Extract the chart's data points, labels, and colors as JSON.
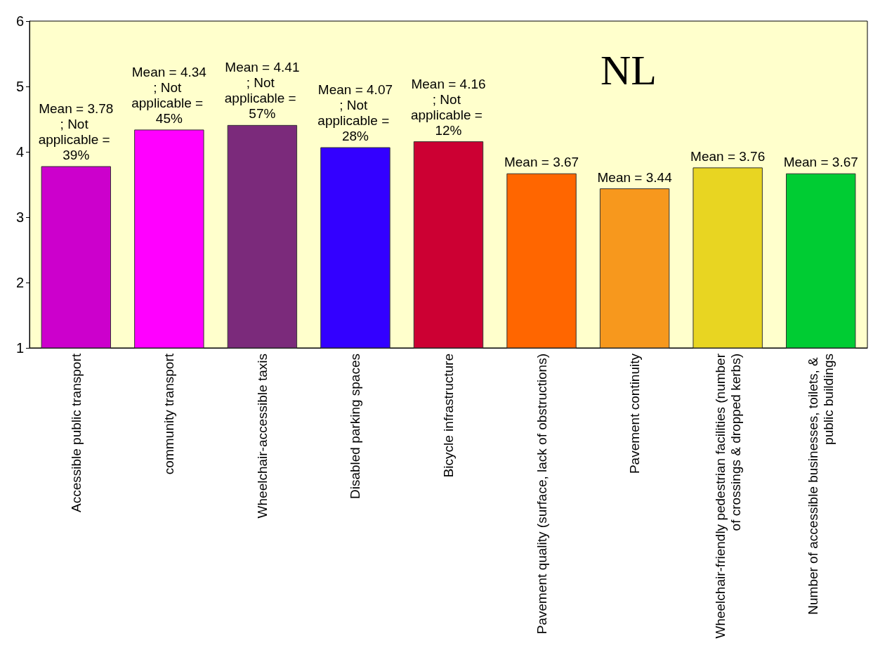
{
  "chart_data": {
    "type": "bar",
    "title": "NL",
    "categories": [
      "Accessible public transport",
      "community transport",
      "Wheelchair-accessible taxis",
      "Disabled parking spaces",
      "Bicycle infrastructure",
      "Pavement quality (surface, lack of obstructions)",
      "Pavement continuity",
      "Wheelchair-friendly pedestrian facilities (number of crossings & dropped kerbs)",
      "Number of accessible businesses, toilets, & public buildings"
    ],
    "values": [
      3.78,
      4.34,
      4.41,
      4.07,
      4.16,
      3.67,
      3.44,
      3.76,
      3.67
    ],
    "colors": [
      "#cc00cc",
      "#ff00ff",
      "#7b2a7b",
      "#3300ff",
      "#cc0033",
      "#ff6600",
      "#f7981d",
      "#e8d522",
      "#00cc33"
    ],
    "value_labels": [
      "Mean = 3.78; Not applicable = 39%",
      "Mean = 4.34; Not applicable = 45%",
      "Mean = 4.41; Not applicable = 57%",
      "Mean = 4.07; Not applicable = 28%",
      "Mean = 4.16; Not applicable = 12%",
      "Mean = 3.67",
      "Mean = 3.44",
      "Mean = 3.76",
      "Mean = 3.67"
    ],
    "ylim": [
      1,
      6
    ],
    "yticks": [
      1,
      2,
      3,
      4,
      5,
      6
    ],
    "grid": false
  }
}
